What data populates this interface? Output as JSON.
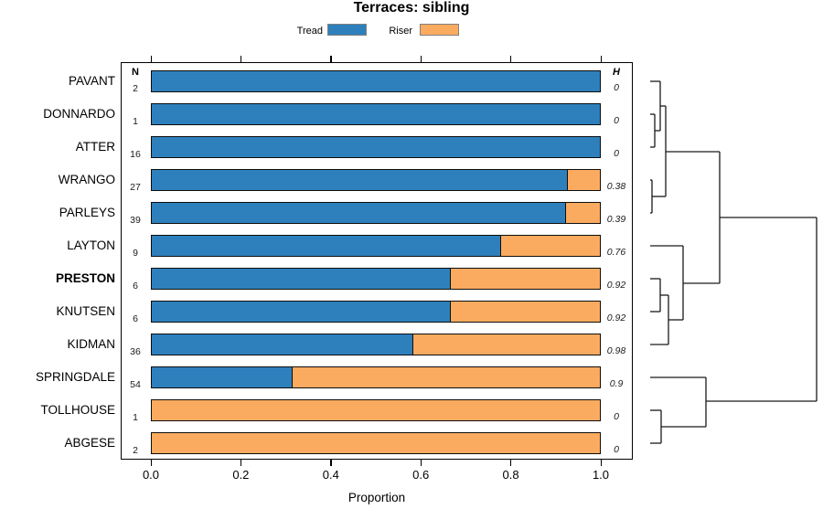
{
  "title": "Terraces: sibling",
  "legend": {
    "items": [
      {
        "label": "Tread",
        "color": "#2e80bc"
      },
      {
        "label": "Riser",
        "color": "#fbab60"
      }
    ]
  },
  "columns": {
    "n_header": "N",
    "h_header": "H"
  },
  "axis": {
    "xlabel": "Proportion",
    "ticks": [
      "0.0",
      "0.2",
      "0.4",
      "0.6",
      "0.8",
      "1.0"
    ],
    "tick_values": [
      0,
      0.2,
      0.4,
      0.6,
      0.8,
      1.0
    ]
  },
  "chart_data": {
    "type": "bar",
    "orientation": "horizontal-stacked",
    "title": "Terraces: sibling",
    "xlabel": "Proportion",
    "xlim": [
      0,
      1
    ],
    "grid": false,
    "legend_position": "top-center",
    "series": [
      {
        "name": "Tread",
        "color": "#2e80bc"
      },
      {
        "name": "Riser",
        "color": "#fbab60"
      }
    ],
    "rows": [
      {
        "label": "PAVANT",
        "n": 2,
        "tread": 1.0,
        "riser": 0.0,
        "h": "0",
        "bold": false
      },
      {
        "label": "DONNARDO",
        "n": 1,
        "tread": 1.0,
        "riser": 0.0,
        "h": "0",
        "bold": false
      },
      {
        "label": "ATTER",
        "n": 16,
        "tread": 1.0,
        "riser": 0.0,
        "h": "0",
        "bold": false
      },
      {
        "label": "WRANGO",
        "n": 27,
        "tread": 0.926,
        "riser": 0.074,
        "h": "0.38",
        "bold": false
      },
      {
        "label": "PARLEYS",
        "n": 39,
        "tread": 0.923,
        "riser": 0.077,
        "h": "0.39",
        "bold": false
      },
      {
        "label": "LAYTON",
        "n": 9,
        "tread": 0.778,
        "riser": 0.222,
        "h": "0.76",
        "bold": false
      },
      {
        "label": "PRESTON",
        "n": 6,
        "tread": 0.667,
        "riser": 0.333,
        "h": "0.92",
        "bold": true
      },
      {
        "label": "KNUTSEN",
        "n": 6,
        "tread": 0.667,
        "riser": 0.333,
        "h": "0.92",
        "bold": false
      },
      {
        "label": "KIDMAN",
        "n": 36,
        "tread": 0.583,
        "riser": 0.417,
        "h": "0.98",
        "bold": false
      },
      {
        "label": "SPRINGDALE",
        "n": 54,
        "tread": 0.315,
        "riser": 0.685,
        "h": "0.9",
        "bold": false
      },
      {
        "label": "TOLLHOUSE",
        "n": 1,
        "tread": 0.0,
        "riser": 1.0,
        "h": "0",
        "bold": false
      },
      {
        "label": "ABGESE",
        "n": 2,
        "tread": 0.0,
        "riser": 1.0,
        "h": "0",
        "bold": false
      }
    ],
    "dendrogram_segments": [
      [
        711,
        89,
        722,
        89
      ],
      [
        711,
        125,
        716,
        125
      ],
      [
        711,
        161,
        716,
        161
      ],
      [
        716,
        125,
        716,
        161
      ],
      [
        716,
        143,
        722,
        143
      ],
      [
        722,
        89,
        722,
        143
      ],
      [
        722,
        116,
        728,
        116
      ],
      [
        711,
        197,
        713,
        197
      ],
      [
        711,
        233,
        713,
        233
      ],
      [
        713,
        197,
        713,
        233
      ],
      [
        713,
        215,
        728,
        215
      ],
      [
        728,
        116,
        728,
        215
      ],
      [
        728,
        166,
        787,
        166
      ],
      [
        711,
        269,
        747,
        269
      ],
      [
        711,
        305,
        722,
        305
      ],
      [
        711,
        341,
        722,
        341
      ],
      [
        722,
        305,
        722,
        341
      ],
      [
        722,
        323,
        731,
        323
      ],
      [
        711,
        377,
        731,
        377
      ],
      [
        731,
        323,
        731,
        377
      ],
      [
        731,
        350,
        747,
        350
      ],
      [
        747,
        269,
        747,
        350
      ],
      [
        747,
        310,
        787,
        310
      ],
      [
        787,
        166,
        787,
        310
      ],
      [
        787,
        238,
        893,
        238
      ],
      [
        711,
        413,
        772,
        413
      ],
      [
        711,
        449,
        723,
        449
      ],
      [
        711,
        485,
        723,
        485
      ],
      [
        723,
        449,
        723,
        485
      ],
      [
        723,
        467,
        772,
        467
      ],
      [
        772,
        413,
        772,
        467
      ],
      [
        772,
        439,
        893,
        439
      ],
      [
        893,
        238,
        893,
        439
      ]
    ]
  }
}
